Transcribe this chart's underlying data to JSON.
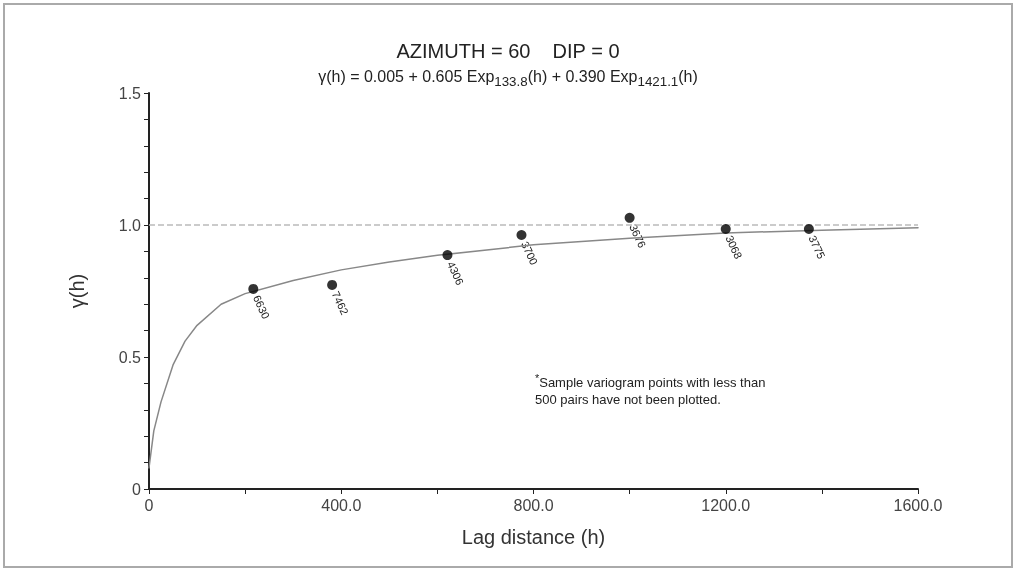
{
  "chart_data": {
    "type": "scatter",
    "title": "AZIMUTH = 60    DIP = 0",
    "subtitle": "γ(h) = 0.005 + 0.605 Exp$_{133.8}$(h) + 0.390 Exp$_{1421.1}$(h)",
    "xlabel": "Lag distance (h)",
    "ylabel": "γ(h)",
    "annotations": [
      "$^{*}$Sample variogram points with less than",
      "500 pairs have not been plotted.",
      {
        "text": "6630",
        "x": 217,
        "y": 0.758
      },
      {
        "text": "7462",
        "x": 381,
        "y": 0.773
      },
      {
        "text": "4306",
        "x": 621,
        "y": 0.886
      },
      {
        "text": "3700",
        "x": 775,
        "y": 0.962
      },
      {
        "text": "3676",
        "x": 1000,
        "y": 1.027
      },
      {
        "text": "3068",
        "x": 1200,
        "y": 0.985
      },
      {
        "text": "3775",
        "x": 1373,
        "y": 0.985
      }
    ],
    "xlim": [
      0,
      1600
    ],
    "ylim": [
      0,
      1.5
    ],
    "xticks": [
      0,
      {
        "value": 200,
        "label": null
      },
      {
        "value": 400,
        "label": "400.0"
      },
      {
        "value": 600,
        "label": null
      },
      {
        "value": 800,
        "label": "800.0"
      },
      {
        "value": 1000,
        "label": null
      },
      {
        "value": 1200,
        "label": "1200.0"
      },
      {
        "value": 1400,
        "label": null
      },
      {
        "value": 1600,
        "label": "1600.0"
      }
    ],
    "yticks": [
      0,
      {
        "value": 0.1,
        "label": null
      },
      {
        "value": 0.2,
        "label": null
      },
      {
        "value": 0.3,
        "label": null
      },
      {
        "value": 0.4,
        "label": null
      },
      0.5,
      {
        "value": 0.6,
        "label": null
      },
      {
        "value": 0.7,
        "label": null
      },
      {
        "value": 0.8,
        "label": null
      },
      {
        "value": 0.9,
        "label": null
      },
      {
        "value": 1.0,
        "label": "1.0"
      },
      {
        "value": 1.1,
        "label": null
      },
      {
        "value": 1.2,
        "label": null
      },
      {
        "value": 1.3,
        "label": null
      },
      {
        "value": 1.4,
        "label": null
      },
      1.5
    ],
    "ref_lines": [
      {
        "axis": "y",
        "value": 1.0,
        "label": null,
        "color": "#bbbbbb",
        "line_style": "dashed"
      }
    ],
    "series": [
      {
        "type": "line",
        "color": "#888888",
        "marker": "none",
        "line_style": "solid",
        "x": [
          0,
          10,
          25,
          50,
          75,
          100,
          150,
          200,
          300,
          400,
          500,
          600,
          800,
          1000,
          1200,
          1400,
          1600
        ],
        "values": [
          0.08,
          0.22,
          0.33,
          0.47,
          0.56,
          0.62,
          0.7,
          0.74,
          0.79,
          0.83,
          0.86,
          0.885,
          0.925,
          0.95,
          0.97,
          0.98,
          0.99
        ]
      },
      {
        "color": "#000000",
        "marker": "circle",
        "x": [
          217,
          381,
          621,
          775,
          1000,
          1200,
          1373
        ],
        "values": [
          0.758,
          0.773,
          0.886,
          0.962,
          1.027,
          0.985,
          0.985
        ]
      }
    ]
  }
}
